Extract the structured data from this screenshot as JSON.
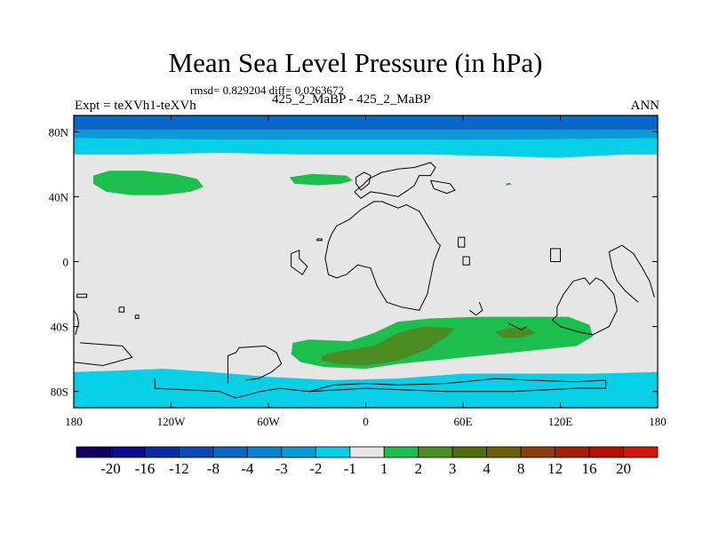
{
  "title": "Mean Sea Level Pressure (in hPa)",
  "stats": "rmsd= 0.829204 diff= 0.0263672",
  "expt_label": "Expt = teXVh1-teXVh",
  "expt_name": "425_2_MaBP - 425_2_MaBP",
  "season": "ANN",
  "chart_data": {
    "type": "heatmap",
    "projection": "cylindrical-equidistant",
    "title": "Mean Sea Level Pressure (in hPa)",
    "xlim": [
      -180,
      180
    ],
    "ylim": [
      -90,
      90
    ],
    "x_ticks": [
      {
        "value": -180,
        "label": "180"
      },
      {
        "value": -120,
        "label": "120W"
      },
      {
        "value": -60,
        "label": "60W"
      },
      {
        "value": 0,
        "label": "0"
      },
      {
        "value": 60,
        "label": "60E"
      },
      {
        "value": 120,
        "label": "120E"
      },
      {
        "value": 180,
        "label": "180"
      }
    ],
    "y_ticks": [
      {
        "value": 80,
        "label": "80N"
      },
      {
        "value": 40,
        "label": "40N"
      },
      {
        "value": 0,
        "label": "0"
      },
      {
        "value": -40,
        "label": "40S"
      },
      {
        "value": -80,
        "label": "80S"
      }
    ],
    "background_color": "#e6e6e6",
    "regions": [
      {
        "name": "north-polar-band-1",
        "color": "#0a67c8",
        "points": [
          [
            -180,
            90
          ],
          [
            180,
            90
          ],
          [
            180,
            81
          ],
          [
            -180,
            81
          ]
        ]
      },
      {
        "name": "north-polar-band-2",
        "color": "#099bd8",
        "points": [
          [
            -180,
            81
          ],
          [
            180,
            81
          ],
          [
            180,
            76
          ],
          [
            90,
            75
          ],
          [
            0,
            75
          ],
          [
            -90,
            75
          ],
          [
            -180,
            76
          ]
        ]
      },
      {
        "name": "north-polar-band-3",
        "color": "#07cfe6",
        "points": [
          [
            -180,
            76
          ],
          [
            -90,
            75
          ],
          [
            0,
            75
          ],
          [
            90,
            75
          ],
          [
            180,
            76
          ],
          [
            180,
            66
          ],
          [
            160,
            66
          ],
          [
            120,
            64
          ],
          [
            80,
            65
          ],
          [
            40,
            66
          ],
          [
            0,
            66
          ],
          [
            -40,
            66
          ],
          [
            -90,
            67
          ],
          [
            -140,
            66
          ],
          [
            -180,
            66
          ]
        ]
      },
      {
        "name": "south-polar-band",
        "color": "#07cfe6",
        "points": [
          [
            -180,
            -68
          ],
          [
            -150,
            -67
          ],
          [
            -125,
            -66
          ],
          [
            -95,
            -68
          ],
          [
            -60,
            -71
          ],
          [
            -20,
            -73
          ],
          [
            20,
            -72
          ],
          [
            60,
            -69
          ],
          [
            100,
            -69
          ],
          [
            140,
            -69
          ],
          [
            180,
            -68
          ],
          [
            180,
            -90
          ],
          [
            -180,
            -90
          ]
        ]
      },
      {
        "name": "positive-1-2-north-pacific",
        "color": "#1cbf4e",
        "points": [
          [
            -168,
            53
          ],
          [
            -158,
            56
          ],
          [
            -138,
            56
          ],
          [
            -118,
            54
          ],
          [
            -104,
            51
          ],
          [
            -100,
            46
          ],
          [
            -108,
            43
          ],
          [
            -125,
            41
          ],
          [
            -145,
            41
          ],
          [
            -160,
            43
          ],
          [
            -168,
            48
          ]
        ]
      },
      {
        "name": "positive-1-2-north-atlantic",
        "color": "#1cbf4e",
        "points": [
          [
            -47,
            52
          ],
          [
            -33,
            54
          ],
          [
            -12,
            53
          ],
          [
            -8,
            50
          ],
          [
            -15,
            48
          ],
          [
            -30,
            47
          ],
          [
            -44,
            48
          ]
        ]
      },
      {
        "name": "positive-1-2-asia",
        "color": "#1cbf4e",
        "points": [
          [
            86,
            48
          ],
          [
            89,
            48.5
          ],
          [
            90,
            47.5
          ],
          [
            87,
            47
          ]
        ]
      },
      {
        "name": "positive-1-2-southern-ocean",
        "color": "#1cbf4e",
        "points": [
          [
            -45,
            -50
          ],
          [
            -35,
            -48
          ],
          [
            -10,
            -49
          ],
          [
            5,
            -44
          ],
          [
            20,
            -37
          ],
          [
            40,
            -35
          ],
          [
            70,
            -34
          ],
          [
            100,
            -34
          ],
          [
            125,
            -34
          ],
          [
            138,
            -39
          ],
          [
            140,
            -46
          ],
          [
            130,
            -52
          ],
          [
            110,
            -54
          ],
          [
            80,
            -57
          ],
          [
            50,
            -60
          ],
          [
            20,
            -63
          ],
          [
            0,
            -66
          ],
          [
            -25,
            -65
          ],
          [
            -40,
            -62
          ],
          [
            -46,
            -57
          ]
        ]
      },
      {
        "name": "positive-2-3-south-atlantic",
        "color": "#4b8c22",
        "points": [
          [
            -27,
            -58
          ],
          [
            -15,
            -55
          ],
          [
            5,
            -52
          ],
          [
            20,
            -44
          ],
          [
            35,
            -40
          ],
          [
            55,
            -41
          ],
          [
            50,
            -46
          ],
          [
            38,
            -54
          ],
          [
            20,
            -61
          ],
          [
            0,
            -64
          ],
          [
            -18,
            -63
          ],
          [
            -27,
            -61
          ]
        ]
      },
      {
        "name": "positive-2-3-indian-ocean",
        "color": "#4b8c22",
        "points": [
          [
            80,
            -43
          ],
          [
            88,
            -41
          ],
          [
            100,
            -41
          ],
          [
            105,
            -44
          ],
          [
            96,
            -47
          ],
          [
            84,
            -47
          ]
        ]
      }
    ],
    "coastlines": [
      [
        [
          -180,
          -30
        ],
        [
          -178,
          -33
        ],
        [
          -177,
          -38
        ],
        [
          -179,
          -45
        ]
      ],
      [
        [
          -178,
          -20
        ],
        [
          -172,
          -20
        ],
        [
          -172,
          -22
        ],
        [
          -178,
          -22
        ],
        [
          -178,
          -20
        ]
      ],
      [
        [
          -152,
          -28
        ],
        [
          -149,
          -28
        ],
        [
          -149,
          -31
        ],
        [
          -152,
          -31
        ],
        [
          -152,
          -28
        ]
      ],
      [
        [
          -142,
          -33
        ],
        [
          -140,
          -33
        ],
        [
          -140,
          -35
        ],
        [
          -142,
          -35
        ],
        [
          -142,
          -33
        ]
      ],
      [
        [
          -176,
          -50
        ],
        [
          -150,
          -52
        ],
        [
          -144,
          -59
        ],
        [
          -162,
          -64
        ],
        [
          -180,
          -62
        ]
      ],
      [
        [
          -130,
          -72
        ],
        [
          -130,
          -78
        ],
        [
          -110,
          -79
        ],
        [
          -90,
          -80
        ],
        [
          -80,
          -84
        ],
        [
          -65,
          -80
        ],
        [
          -53,
          -78
        ],
        [
          -35,
          -80
        ]
      ],
      [
        [
          -85,
          -75
        ],
        [
          -85,
          -58
        ],
        [
          -80,
          -56
        ],
        [
          -78,
          -53
        ],
        [
          -62,
          -52
        ],
        [
          -55,
          -56
        ],
        [
          -52,
          -63
        ],
        [
          -58,
          -68
        ],
        [
          -66,
          -72
        ],
        [
          -74,
          -73
        ]
      ],
      [
        [
          -35,
          -80
        ],
        [
          -20,
          -76
        ],
        [
          0,
          -75
        ],
        [
          20,
          -76
        ],
        [
          50,
          -75
        ],
        [
          80,
          -72
        ],
        [
          100,
          -73
        ],
        [
          130,
          -74
        ],
        [
          148,
          -73
        ],
        [
          148,
          -78
        ],
        [
          130,
          -78
        ],
        [
          90,
          -80
        ],
        [
          50,
          -80
        ],
        [
          0,
          -78
        ],
        [
          -35,
          -80
        ]
      ],
      [
        [
          -46,
          -3
        ],
        [
          -46,
          5
        ],
        [
          -41,
          7
        ],
        [
          -41,
          2
        ],
        [
          -36,
          -3
        ],
        [
          -39,
          -8
        ],
        [
          -46,
          -3
        ]
      ],
      [
        [
          -30,
          14
        ],
        [
          -27,
          14
        ],
        [
          -27,
          13
        ],
        [
          -30,
          13
        ],
        [
          -30,
          14
        ]
      ],
      [
        [
          -18,
          22
        ],
        [
          -10,
          26
        ],
        [
          -3,
          32
        ],
        [
          5,
          37
        ],
        [
          10,
          37
        ],
        [
          20,
          33
        ],
        [
          25,
          35
        ],
        [
          33,
          31
        ],
        [
          40,
          19
        ],
        [
          44,
          12
        ],
        [
          46,
          10
        ],
        [
          42,
          0
        ],
        [
          40,
          -10
        ],
        [
          38,
          -20
        ],
        [
          33,
          -30
        ],
        [
          22,
          -28
        ],
        [
          13,
          -25
        ],
        [
          7,
          -15
        ],
        [
          3,
          -4
        ],
        [
          -5,
          -2
        ],
        [
          -12,
          -8
        ],
        [
          -18,
          -10
        ],
        [
          -23,
          -8
        ],
        [
          -25,
          2
        ],
        [
          -23,
          12
        ],
        [
          -21,
          17
        ],
        [
          -18,
          22
        ]
      ],
      [
        [
          -7,
          43
        ],
        [
          -2,
          47
        ],
        [
          2,
          51
        ],
        [
          10,
          55
        ],
        [
          20,
          57
        ],
        [
          30,
          58
        ],
        [
          40,
          61
        ],
        [
          43,
          58
        ],
        [
          40,
          53
        ],
        [
          33,
          53
        ],
        [
          30,
          47
        ],
        [
          26,
          44
        ],
        [
          20,
          40
        ],
        [
          10,
          42
        ],
        [
          3,
          43
        ],
        [
          -3,
          39
        ],
        [
          -7,
          43
        ]
      ],
      [
        [
          -3,
          44
        ],
        [
          -6,
          48
        ],
        [
          -6,
          52
        ],
        [
          -1,
          55
        ],
        [
          3,
          53
        ],
        [
          2,
          48
        ],
        [
          -3,
          44
        ]
      ],
      [
        [
          40,
          50
        ],
        [
          52,
          48
        ],
        [
          55,
          44
        ],
        [
          50,
          42
        ],
        [
          42,
          45
        ],
        [
          40,
          50
        ]
      ],
      [
        [
          57,
          15
        ],
        [
          61,
          15
        ],
        [
          61,
          9
        ],
        [
          57,
          9
        ],
        [
          57,
          15
        ]
      ],
      [
        [
          64,
          3
        ],
        [
          64,
          -2
        ],
        [
          60,
          -2
        ],
        [
          60,
          3
        ],
        [
          64,
          3
        ]
      ],
      [
        [
          70,
          -25
        ],
        [
          72,
          -30
        ],
        [
          68,
          -33
        ],
        [
          64,
          -30
        ]
      ],
      [
        [
          88,
          -38
        ],
        [
          92,
          -40
        ],
        [
          96,
          -42
        ],
        [
          99,
          -40
        ]
      ],
      [
        [
          114,
          0
        ],
        [
          114,
          8
        ],
        [
          120,
          8
        ],
        [
          120,
          0
        ],
        [
          114,
          0
        ]
      ],
      [
        [
          135,
          -10
        ],
        [
          128,
          -12
        ],
        [
          122,
          -20
        ],
        [
          118,
          -28
        ],
        [
          118,
          -33
        ],
        [
          115,
          -36
        ],
        [
          120,
          -40
        ],
        [
          130,
          -43
        ],
        [
          140,
          -45
        ],
        [
          150,
          -40
        ],
        [
          155,
          -30
        ],
        [
          153,
          -20
        ],
        [
          146,
          -12
        ],
        [
          142,
          -10
        ],
        [
          138,
          -14
        ],
        [
          135,
          -10
        ]
      ],
      [
        [
          150,
          6
        ],
        [
          158,
          10
        ],
        [
          165,
          5
        ],
        [
          170,
          -3
        ],
        [
          175,
          -12
        ],
        [
          178,
          -22
        ]
      ],
      [
        [
          150,
          6
        ],
        [
          152,
          -4
        ],
        [
          155,
          -12
        ],
        [
          160,
          -18
        ],
        [
          168,
          -25
        ]
      ]
    ],
    "colorbar": {
      "boundaries": [
        "-20",
        "-16",
        "-12",
        "-8",
        "-4",
        "-3",
        "-2",
        "-1",
        "1",
        "2",
        "3",
        "4",
        "8",
        "12",
        "16",
        "20"
      ],
      "colors": [
        "#12005e",
        "#0a0e8c",
        "#0a2ca3",
        "#0a49b6",
        "#0a67c8",
        "#0982d0",
        "#099bd8",
        "#07cfe6",
        "#e6e6e6",
        "#1cbf4e",
        "#4b8c22",
        "#4f6d0c",
        "#6b5c0a",
        "#8a3d08",
        "#a31f07",
        "#b60f06",
        "#d2160e"
      ]
    }
  }
}
